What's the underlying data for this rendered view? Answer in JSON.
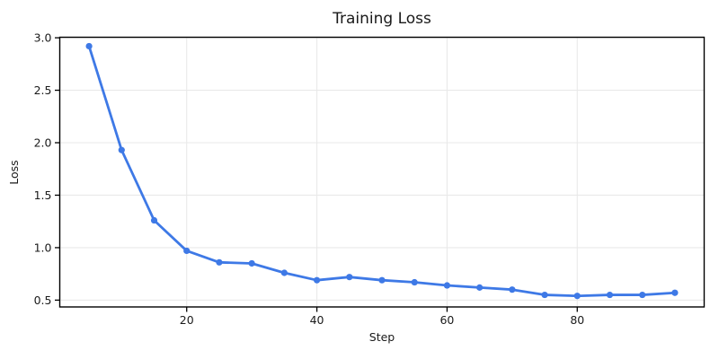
{
  "chart_data": {
    "type": "line",
    "title": "Training Loss",
    "xlabel": "Step",
    "ylabel": "Loss",
    "x": [
      5,
      10,
      15,
      20,
      25,
      30,
      35,
      40,
      45,
      50,
      55,
      60,
      65,
      70,
      75,
      80,
      85,
      90,
      95
    ],
    "series": [
      {
        "name": "training_loss",
        "values": [
          2.92,
          1.93,
          1.26,
          0.97,
          0.86,
          0.85,
          0.76,
          0.69,
          0.72,
          0.69,
          0.67,
          0.64,
          0.62,
          0.6,
          0.55,
          0.54,
          0.55,
          0.55,
          0.57
        ]
      }
    ],
    "xlim": [
      0.5,
      99.5
    ],
    "ylim": [
      0.435,
      3.005
    ],
    "xticks": [
      20,
      40,
      60,
      80
    ],
    "yticks": [
      0.5,
      1.0,
      1.5,
      2.0,
      2.5,
      3.0
    ],
    "grid": true,
    "legend_position": "none",
    "line_color": "#3e79e6",
    "marker": "circle",
    "grid_color": "#e9e9e9",
    "axis_color": "#000000",
    "background_color": "#ffffff"
  }
}
